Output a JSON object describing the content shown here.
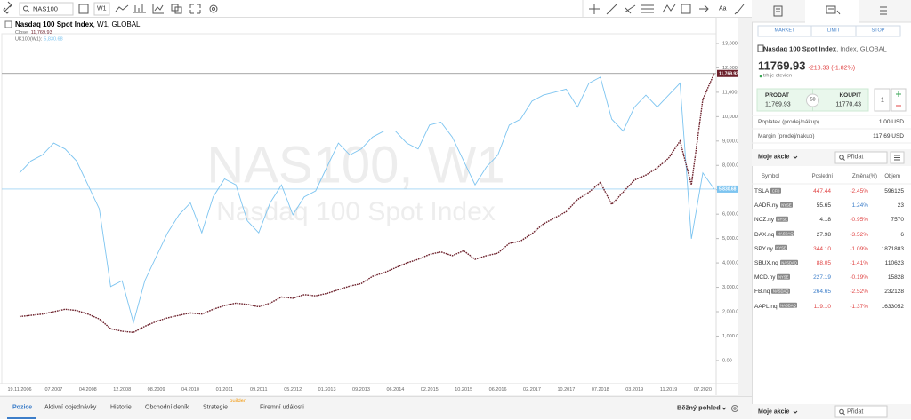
{
  "toolbar": {
    "symbol": "NAS100",
    "timeframe": "W1",
    "font_button": "Aa"
  },
  "chart_data": {
    "type": "line",
    "title": "Nasdaq 100 Spot Index",
    "subtitle": ", W1, GLOBAL",
    "watermark": [
      "NAS100, W1",
      "Nasdaq 100 Spot Index"
    ],
    "categories": [
      "19.11.2006",
      null,
      null,
      "07.2007",
      null,
      null,
      "04.2008",
      null,
      null,
      "12.2008",
      null,
      null,
      "08.2009",
      null,
      null,
      "04.2010",
      null,
      null,
      "01.2011",
      null,
      null,
      "09.2011",
      null,
      null,
      "05.2012",
      null,
      null,
      "01.2013",
      null,
      null,
      "09.2013",
      null,
      null,
      "06.2014",
      null,
      null,
      "02.2015",
      null,
      null,
      "10.2015",
      null,
      null,
      "06.2016",
      null,
      null,
      "02.2017",
      null,
      null,
      "10.2017",
      null,
      null,
      "07.2018",
      null,
      null,
      "03.2019",
      null,
      null,
      "11.2019",
      null,
      null,
      "07.2020",
      null
    ],
    "series": [
      {
        "name": "Close:",
        "color": "#6b1f2a",
        "last_label": "11,769.93",
        "line_color": "#8a8a8a",
        "values": [
          1800,
          1850,
          1900,
          2000,
          2100,
          2050,
          1900,
          1700,
          1300,
          1200,
          1150,
          1400,
          1600,
          1750,
          1850,
          1950,
          1900,
          2100,
          2250,
          2350,
          2300,
          2200,
          2350,
          2600,
          2550,
          2700,
          2650,
          2750,
          2900,
          3050,
          3150,
          3450,
          3600,
          3800,
          4000,
          4150,
          4350,
          4450,
          4300,
          4500,
          4150,
          4300,
          4400,
          4800,
          4900,
          5200,
          5600,
          5850,
          6100,
          6600,
          6900,
          7300,
          6400,
          6900,
          7400,
          7600,
          7900,
          8300,
          9000,
          7200,
          10700,
          11769.93
        ]
      },
      {
        "name": "UK100(W1):",
        "color": "#7cc4f0",
        "axis": "y2",
        "last_label": "5,830.68",
        "line_color": "#7cc4f0",
        "values": [
          6100,
          6300,
          6400,
          6600,
          6500,
          6300,
          5900,
          5500,
          4200,
          4300,
          3600,
          4300,
          4700,
          5100,
          5400,
          5600,
          5100,
          5700,
          6000,
          5900,
          5300,
          5100,
          5600,
          5900,
          5400,
          5700,
          5800,
          6200,
          6600,
          6400,
          6500,
          6700,
          6800,
          6800,
          6600,
          6500,
          6900,
          6950,
          6700,
          6300,
          5900,
          6200,
          6400,
          6900,
          7000,
          7300,
          7400,
          7450,
          7500,
          7200,
          7600,
          7700,
          7000,
          6800,
          7200,
          7400,
          7200,
          7400,
          7600,
          5000,
          6100,
          5830.68
        ]
      }
    ],
    "ylim": [
      -950,
      13400
    ],
    "yticks": [
      {
        "value": 0,
        "label": "0.00"
      },
      {
        "value": 1000,
        "label": "1,000.00"
      },
      {
        "value": 2000,
        "label": "2,000.00"
      },
      {
        "value": 3000,
        "label": "3,000.00"
      },
      {
        "value": 4000,
        "label": "4,000.00"
      },
      {
        "value": 5000,
        "label": "5,000.00"
      },
      {
        "value": 6000,
        "label": "6,000.00"
      },
      {
        "value": 7000,
        "label": "7,000.00"
      },
      {
        "value": 8000,
        "label": "8,000.00"
      },
      {
        "value": 9000,
        "label": "9,000.00"
      },
      {
        "value": 10000,
        "label": "10,000.00"
      },
      {
        "value": 11000,
        "label": "11,000.00"
      },
      {
        "value": 12000,
        "label": "12,000.00"
      },
      {
        "value": 13000,
        "label": "13,000.00"
      }
    ],
    "y2lim": [
      2580,
      8426
    ],
    "grid": false
  },
  "panel": {
    "order_types": [
      "MARKET",
      "LIMIT",
      "STOP"
    ],
    "symbol_name": "Nasdaq 100 Spot Index",
    "symbol_info": ", Index, GLOBAL",
    "price": "11769.93",
    "change": "-218.33 (-1.82%)",
    "status": "trh je otevřen",
    "sell": {
      "label": "PRODAT",
      "price": "11769.93"
    },
    "spread": "50",
    "buy": {
      "label": "KOUPIT",
      "price": "11770.43"
    },
    "quantity": "1",
    "fees": [
      {
        "label": "Poplatek (prodej/nákup)",
        "value": "1.00 USD"
      },
      {
        "label": "Margin (prodej/nákup)",
        "value": "117.69 USD"
      }
    ],
    "watchlist": {
      "title": "Moje akcie",
      "add": "Přidat",
      "columns": [
        "Symbol",
        "Poslední",
        "Změna(%)",
        "Objem"
      ],
      "rows": [
        {
          "symbol": "TSLA",
          "exchange": "CFD",
          "last": "447.44",
          "last_color": "#e04646",
          "change": "-2.45%",
          "volume": "596125"
        },
        {
          "symbol": "AADR.ny",
          "exchange": "NYSE",
          "last": "55.65",
          "last_color": "#333333",
          "change": "1.24%",
          "volume": "23"
        },
        {
          "symbol": "NCZ.ny",
          "exchange": "NYSE",
          "last": "4.18",
          "last_color": "#333333",
          "change": "-0.95%",
          "volume": "7570"
        },
        {
          "symbol": "DAX.nq",
          "exchange": "NASDAQ",
          "last": "27.98",
          "last_color": "#333333",
          "change": "-3.52%",
          "volume": "6"
        },
        {
          "symbol": "SPY.ny",
          "exchange": "NYSE",
          "last": "344.10",
          "last_color": "#e04646",
          "change": "-1.09%",
          "volume": "1871883"
        },
        {
          "symbol": "SBUX.nq",
          "exchange": "NASDAQ",
          "last": "88.05",
          "last_color": "#e04646",
          "change": "-1.41%",
          "volume": "110623"
        },
        {
          "symbol": "MCD.ny",
          "exchange": "NYSE",
          "last": "227.19",
          "last_color": "#3d7ec9",
          "change": "-0.19%",
          "volume": "15828"
        },
        {
          "symbol": "FB.nq",
          "exchange": "NASDAQ",
          "last": "264.65",
          "last_color": "#3d7ec9",
          "change": "-2.52%",
          "volume": "232128"
        },
        {
          "symbol": "AAPL.nq",
          "exchange": "NASDAQ",
          "last": "119.10",
          "last_color": "#e04646",
          "change": "-1.37%",
          "volume": "1633052"
        }
      ]
    }
  },
  "bottom_bar": {
    "tabs": [
      "Pozice",
      "Aktivní objednávky",
      "Historie",
      "Obchodní deník",
      "Strategie",
      "Firemní události"
    ],
    "badge": "builder",
    "view": "Běžný pohled"
  },
  "footer_watchlist": {
    "title": "Moje akcie",
    "add": "Přidat"
  }
}
